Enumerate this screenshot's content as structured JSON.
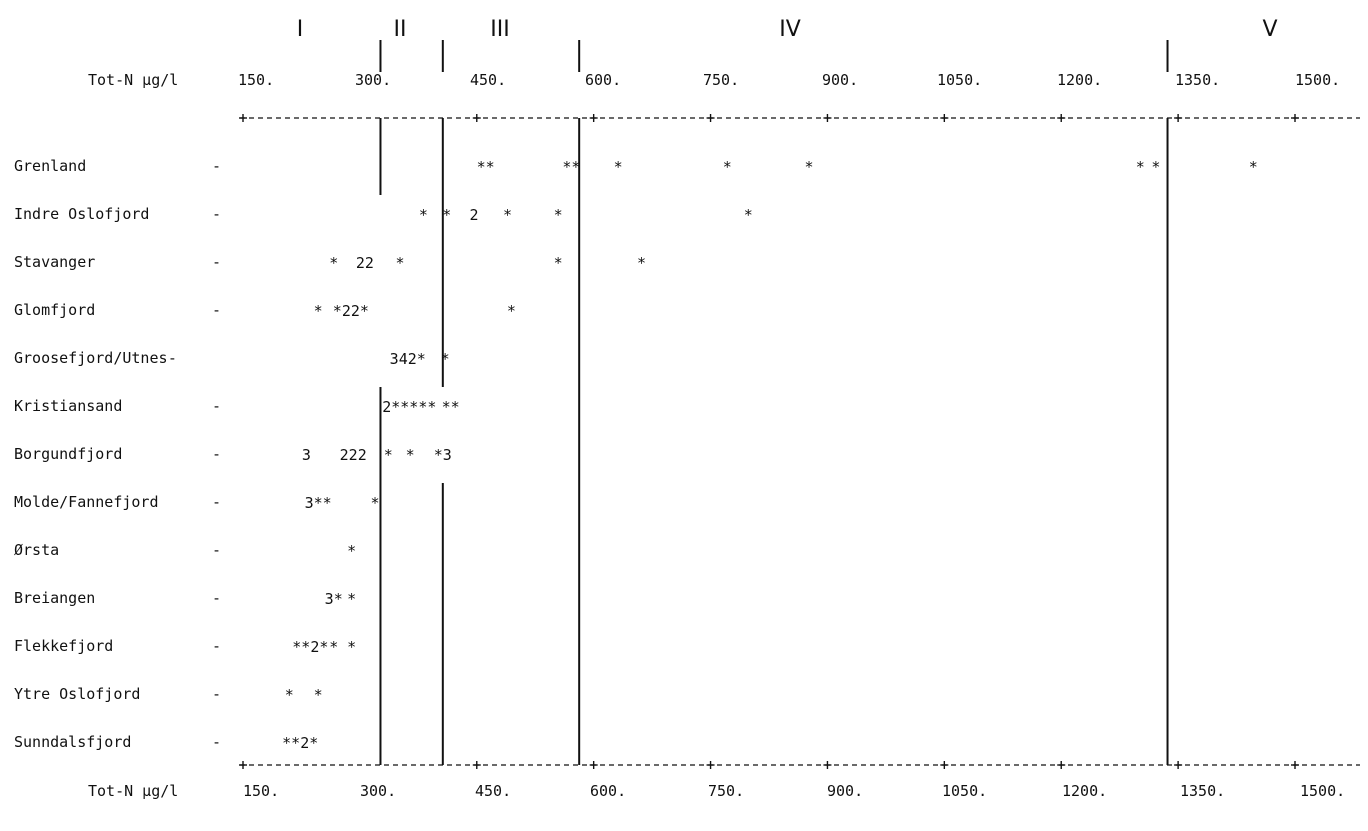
{
  "chart_data": {
    "type": "scatter",
    "axis_label": "Tot-N µg/l",
    "ticks": [
      "150.",
      "300.",
      "450.",
      "600.",
      "750.",
      "900.",
      "1050.",
      "1200.",
      "1350.",
      "1500."
    ],
    "xlim": [
      150,
      1500
    ],
    "classes": [
      {
        "label": "I"
      },
      {
        "label": "II"
      },
      {
        "label": "III"
      },
      {
        "label": "IV"
      },
      {
        "label": "V"
      }
    ],
    "class_boundaries": [
      {
        "value": 320,
        "top_marker": true,
        "lines": [
          [
            0,
            0
          ],
          [
            5,
            14
          ]
        ]
      },
      {
        "value": 400,
        "top_marker": true,
        "lines": [
          [
            0,
            4
          ],
          [
            7,
            14
          ]
        ]
      },
      {
        "value": 575,
        "top_marker": true,
        "lines": [
          [
            0,
            14
          ]
        ]
      },
      {
        "value": 1330,
        "top_marker": true,
        "lines": [
          [
            0,
            14
          ]
        ]
      }
    ],
    "rows": [
      {
        "label": "Grenland",
        "dash": "-",
        "marks": [
          {
            "x": 455,
            "t": "**"
          },
          {
            "x": 565,
            "t": "**"
          },
          {
            "x": 625,
            "t": "*"
          },
          {
            "x": 765,
            "t": "*"
          },
          {
            "x": 870,
            "t": "*"
          },
          {
            "x": 1295,
            "t": "*"
          },
          {
            "x": 1315,
            "t": "*"
          },
          {
            "x": 1440,
            "t": "*"
          }
        ]
      },
      {
        "label": "Indre Oslofjord",
        "dash": "-",
        "marks": [
          {
            "x": 375,
            "t": "*"
          },
          {
            "x": 405,
            "t": "*"
          },
          {
            "x": 440,
            "t": "2"
          },
          {
            "x": 483,
            "t": "*"
          },
          {
            "x": 548,
            "t": "*"
          },
          {
            "x": 792,
            "t": "*"
          }
        ]
      },
      {
        "label": "Stavanger",
        "dash": "-",
        "marks": [
          {
            "x": 260,
            "t": "*"
          },
          {
            "x": 300,
            "t": "22"
          },
          {
            "x": 345,
            "t": "*"
          },
          {
            "x": 548,
            "t": "*"
          },
          {
            "x": 655,
            "t": "*"
          }
        ]
      },
      {
        "label": "Glomfjord",
        "dash": "-",
        "marks": [
          {
            "x": 240,
            "t": "*"
          },
          {
            "x": 282,
            "t": "*22*"
          },
          {
            "x": 488,
            "t": "*"
          }
        ]
      },
      {
        "label": "Groosefjord/Utnes",
        "dash": "-",
        "marks": [
          {
            "x": 355,
            "t": "342*"
          },
          {
            "x": 403,
            "t": "*"
          }
        ]
      },
      {
        "label": "Kristiansand",
        "dash": "-",
        "marks": [
          {
            "x": 357,
            "t": "2*****"
          },
          {
            "x": 410,
            "t": "**"
          }
        ]
      },
      {
        "label": "Borgundfjord",
        "dash": "-",
        "marks": [
          {
            "x": 225,
            "t": "3"
          },
          {
            "x": 285,
            "t": "222"
          },
          {
            "x": 330,
            "t": "*"
          },
          {
            "x": 358,
            "t": "*"
          },
          {
            "x": 400,
            "t": "*3"
          }
        ]
      },
      {
        "label": "Molde/Fannefjord",
        "dash": "-",
        "marks": [
          {
            "x": 240,
            "t": "3**"
          },
          {
            "x": 313,
            "t": "*"
          }
        ]
      },
      {
        "label": "Ørsta",
        "dash": "-",
        "marks": [
          {
            "x": 283,
            "t": "*"
          }
        ]
      },
      {
        "label": "Breiangen",
        "dash": "-",
        "marks": [
          {
            "x": 260,
            "t": "3*"
          },
          {
            "x": 283,
            "t": "*"
          }
        ]
      },
      {
        "label": "Flekkefjord",
        "dash": "-",
        "marks": [
          {
            "x": 230,
            "t": "**2*"
          },
          {
            "x": 260,
            "t": "*"
          },
          {
            "x": 283,
            "t": "*"
          }
        ]
      },
      {
        "label": "Ytre Oslofjord",
        "dash": "-",
        "marks": [
          {
            "x": 203,
            "t": "*"
          },
          {
            "x": 240,
            "t": "*"
          }
        ]
      },
      {
        "label": "Sunndalsfjord",
        "dash": "-",
        "marks": [
          {
            "x": 217,
            "t": "**2*"
          }
        ]
      }
    ]
  }
}
